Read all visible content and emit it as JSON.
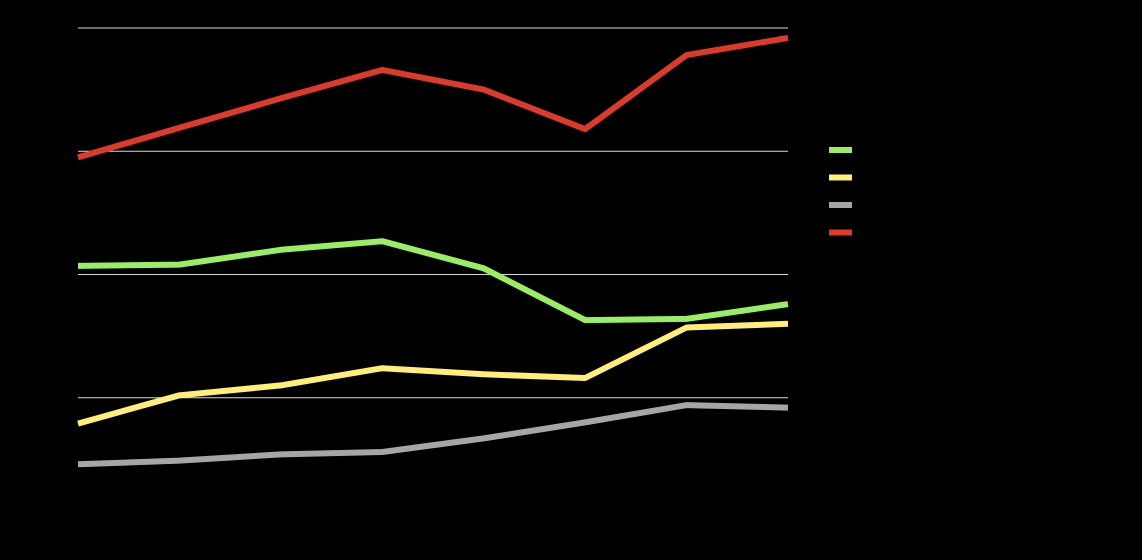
{
  "chart_data": {
    "type": "line",
    "title": "",
    "xlabel": "",
    "ylabel": "",
    "grid": true,
    "legend_position": "right",
    "ylim": [
      0,
      4
    ],
    "gridlines": [
      1,
      2,
      3,
      4
    ],
    "x": [
      0,
      1,
      2,
      3,
      4,
      5,
      6,
      7
    ],
    "series": [
      {
        "color": "#99ee66",
        "values": [
          2.07,
          2.08,
          2.2,
          2.27,
          2.05,
          1.63,
          1.64,
          1.76
        ]
      },
      {
        "color": "#ffee77",
        "values": [
          0.79,
          1.02,
          1.1,
          1.24,
          1.19,
          1.16,
          1.57,
          1.6
        ]
      },
      {
        "color": "#a6a6a6",
        "values": [
          0.46,
          0.49,
          0.54,
          0.56,
          0.67,
          0.8,
          0.94,
          0.92
        ]
      },
      {
        "color": "#dd3a2c",
        "values": [
          2.95,
          3.19,
          3.43,
          3.66,
          3.5,
          3.18,
          3.78,
          3.92
        ]
      }
    ]
  }
}
